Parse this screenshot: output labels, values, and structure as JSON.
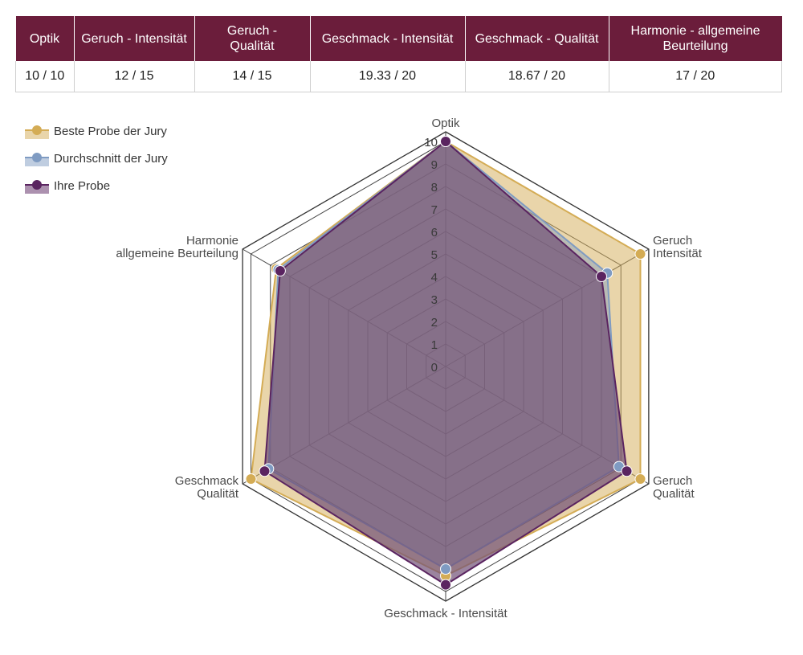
{
  "table": {
    "headers": [
      [
        "Optik"
      ],
      [
        "Geruch - Intensität"
      ],
      [
        "Geruch -",
        "Qualität"
      ],
      [
        "Geschmack - Intensität"
      ],
      [
        "Geschmack - Qualität"
      ],
      [
        "Harmonie - allgemeine",
        "Beurteilung"
      ]
    ],
    "values": [
      "10 / 10",
      "12 / 15",
      "14 / 15",
      "19.33 / 20",
      "18.67 / 20",
      "17 / 20"
    ]
  },
  "legend": [
    {
      "label": "Beste Probe der Jury",
      "color": "#d4ac55"
    },
    {
      "label": "Durchschnitt der Jury",
      "color": "#7f9bc2"
    },
    {
      "label": "Ihre Probe",
      "color": "#5a2460"
    }
  ],
  "chart_data": {
    "type": "radar",
    "axes": [
      [
        "Optik"
      ],
      [
        "Geruch",
        "Intensität"
      ],
      [
        "Geruch",
        "Qualität"
      ],
      [
        "Geschmack - Intensität"
      ],
      [
        "Geschmack",
        "Qualität"
      ],
      [
        "Harmonie",
        "allgemeine Beurteilung"
      ]
    ],
    "scale": {
      "min": 0,
      "max": 10,
      "ticks": [
        0,
        1,
        2,
        3,
        4,
        5,
        6,
        7,
        8,
        9,
        10
      ]
    },
    "series": [
      {
        "name": "Beste Probe der Jury",
        "color": "#d4ac55",
        "fill": "rgba(212,172,85,0.50)",
        "values": [
          10,
          10,
          10,
          9.3,
          10,
          8.7
        ]
      },
      {
        "name": "Durchschnitt der Jury",
        "color": "#7f9bc2",
        "fill": "rgba(127,155,194,0.45)",
        "values": [
          10,
          8.3,
          8.9,
          9.0,
          9.1,
          8.6
        ]
      },
      {
        "name": "Ihre Probe",
        "color": "#5a2460",
        "fill": "rgba(112,80,118,0.70)",
        "values": [
          10,
          8.0,
          9.3,
          9.7,
          9.3,
          8.5
        ]
      }
    ]
  }
}
